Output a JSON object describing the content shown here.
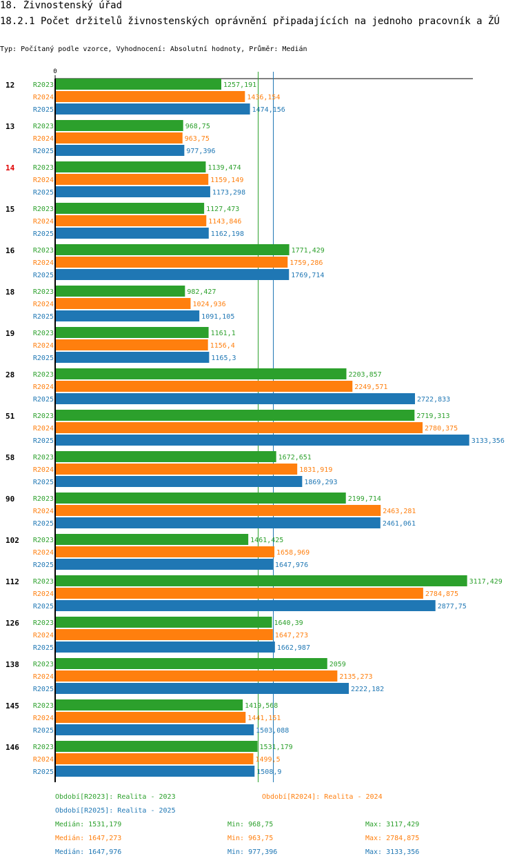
{
  "header": {
    "section": "18. Živnostenský úřad",
    "title": "18.2.1 Počet držitelů živnostenských oprávnění připadajících na jednoho pracovník a ŽÚ",
    "subtitle": "Typ: Počítaný podle vzorce, Vyhodnocení: Absolutní hodnoty, Průměr: Medián"
  },
  "chart_data": {
    "type": "bar",
    "orientation": "horizontal",
    "title": "18.2.1 Počet držitelů živnostenských oprávnění připadajících na jednoho pracovník a ŽÚ",
    "xlabel": "",
    "ylabel": "",
    "x_tick_labels": [
      "0"
    ],
    "xlim": [
      0,
      3400
    ],
    "grid": false,
    "categories": [
      "12",
      "13",
      "14",
      "15",
      "16",
      "18",
      "19",
      "28",
      "51",
      "58",
      "90",
      "102",
      "112",
      "126",
      "138",
      "145",
      "146"
    ],
    "highlighted_category": "14",
    "series": [
      {
        "name": "R2023",
        "color": "#2ca02c",
        "values": [
          1257.191,
          968.75,
          1139.474,
          1127.473,
          1771.429,
          982.427,
          1161.1,
          2203.857,
          2719.313,
          1672.651,
          2199.714,
          1461.425,
          3117.429,
          1640.39,
          2059,
          1419.568,
          1531.179
        ],
        "labels": [
          "1257,191",
          "968,75",
          "1139,474",
          "1127,473",
          "1771,429",
          "982,427",
          "1161,1",
          "2203,857",
          "2719,313",
          "1672,651",
          "2199,714",
          "1461,425",
          "3117,429",
          "1640,39",
          "2059",
          "1419,568",
          "1531,179"
        ]
      },
      {
        "name": "R2024",
        "color": "#ff7f0e",
        "values": [
          1436.154,
          963.75,
          1159.149,
          1143.846,
          1759.286,
          1024.936,
          1156.4,
          2249.571,
          2780.375,
          1831.919,
          2463.281,
          1658.969,
          2784.875,
          1647.273,
          2135.273,
          1441.151,
          1499.5
        ],
        "labels": [
          "1436,154",
          "963,75",
          "1159,149",
          "1143,846",
          "1759,286",
          "1024,936",
          "1156,4",
          "2249,571",
          "2780,375",
          "1831,919",
          "2463,281",
          "1658,969",
          "2784,875",
          "1647,273",
          "2135,273",
          "1441,151",
          "1499,5"
        ]
      },
      {
        "name": "R2025",
        "color": "#1f77b4",
        "values": [
          1474.156,
          977.396,
          1173.298,
          1162.198,
          1769.714,
          1091.105,
          1165.3,
          2722.833,
          3133.356,
          1869.293,
          2461.061,
          1647.976,
          2877.75,
          1662.987,
          2222.182,
          1503.088,
          1508.9
        ],
        "labels": [
          "1474,156",
          "977,396",
          "1173,298",
          "1162,198",
          "1769,714",
          "1091,105",
          "1165,3",
          "2722,833",
          "3133,356",
          "1869,293",
          "2461,061",
          "1647,976",
          "2877,75",
          "1662,987",
          "2222,182",
          "1503,088",
          "1508,9"
        ]
      }
    ],
    "median_lines": [
      {
        "series": "R2023",
        "value": 1531.179
      },
      {
        "series": "R2025",
        "value": 1647.976
      }
    ],
    "legend": {
      "periods": [
        {
          "text": "Období[R2023]: Realita - 2023",
          "color": "#2ca02c"
        },
        {
          "text": "Období[R2024]: Realita - 2024",
          "color": "#ff7f0e"
        },
        {
          "text": "Období[R2025]: Realita - 2025",
          "color": "#1f77b4"
        }
      ],
      "stats": [
        {
          "median": "Medián: 1531,179",
          "min": "Min: 968,75",
          "max": "Max: 3117,429",
          "color": "#2ca02c"
        },
        {
          "median": "Medián: 1647,273",
          "min": "Min: 963,75",
          "max": "Max: 2784,875",
          "color": "#ff7f0e"
        },
        {
          "median": "Medián: 1647,976",
          "min": "Min: 977,396",
          "max": "Max: 3133,356",
          "color": "#1f77b4"
        }
      ],
      "placement": "bottom"
    }
  }
}
